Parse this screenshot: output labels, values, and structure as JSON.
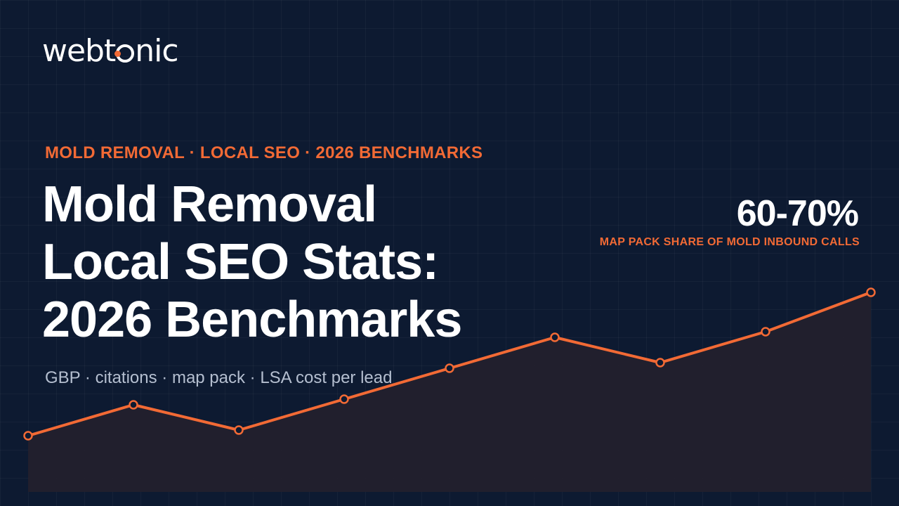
{
  "brand": {
    "logo_before": "webt",
    "logo_after": "nic"
  },
  "kicker": "MOLD REMOVAL · LOCAL SEO · 2026 BENCHMARKS",
  "title": {
    "line1": "Mold Removal",
    "line2": "Local SEO Stats:",
    "line3": "2026 Benchmarks"
  },
  "subtitle": "GBP · citations · map pack · LSA cost per lead",
  "stat": {
    "value": "60-70%",
    "label": "MAP PACK SHARE OF MOLD INBOUND CALLS"
  },
  "colors": {
    "background": "#0d1a31",
    "accent": "#f26a35",
    "area_fill": "#231f2c",
    "text": "#ffffff",
    "muted_text": "#b5bfd0"
  },
  "chart_data": {
    "type": "area",
    "x": [
      1,
      2,
      3,
      4,
      5,
      6,
      7,
      8,
      9
    ],
    "values": [
      20,
      31,
      22,
      33,
      44,
      55,
      46,
      57,
      71
    ],
    "ylim": [
      0,
      100
    ]
  }
}
